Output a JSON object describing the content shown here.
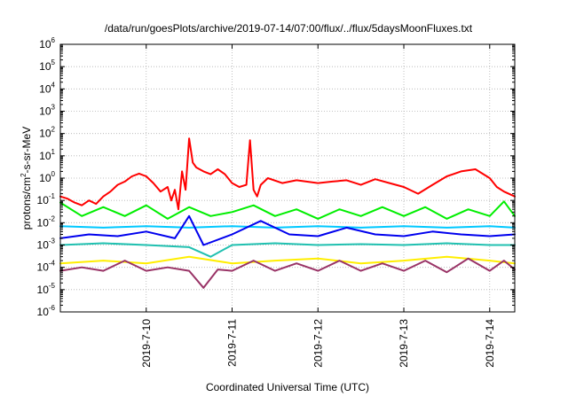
{
  "chart_data": {
    "type": "line",
    "title": "/data/run/goesPlots/archive/2019-07-14/07:00/flux/../flux/5daysMoonFluxes.txt",
    "xlabel": "Coordinated Universal Time (UTC)",
    "ylabel": {
      "base": "protons/cm",
      "sup": "2",
      "rest": "-s-sr-MeV"
    },
    "y_scale": "log",
    "ylim": [
      1e-06,
      1000000.0
    ],
    "y_ticks": [
      {
        "base": "10",
        "exp": "-6"
      },
      {
        "base": "10",
        "exp": "-5"
      },
      {
        "base": "10",
        "exp": "-4"
      },
      {
        "base": "10",
        "exp": "-3"
      },
      {
        "base": "10",
        "exp": "-2"
      },
      {
        "base": "10",
        "exp": "-1"
      },
      {
        "base": "10",
        "exp": "0"
      },
      {
        "base": "10",
        "exp": "1"
      },
      {
        "base": "10",
        "exp": "2"
      },
      {
        "base": "10",
        "exp": "3"
      },
      {
        "base": "10",
        "exp": "4"
      },
      {
        "base": "10",
        "exp": "5"
      },
      {
        "base": "10",
        "exp": "6"
      }
    ],
    "xlim": [
      "2019-07-09T00:00",
      "2019-07-14T07:00"
    ],
    "x_ticks": [
      "2019-7-10",
      "2019-7-11",
      "2019-7-12",
      "2019-7-13",
      "2019-7-14"
    ],
    "grid": true,
    "series": [
      {
        "color": "#ff0000",
        "points": [
          [
            "2019-07-09T00:00",
            0.15
          ],
          [
            "2019-07-09T02:00",
            0.12
          ],
          [
            "2019-07-09T04:00",
            0.08
          ],
          [
            "2019-07-09T06:00",
            0.06
          ],
          [
            "2019-07-09T08:00",
            0.1
          ],
          [
            "2019-07-09T10:00",
            0.07
          ],
          [
            "2019-07-09T12:00",
            0.15
          ],
          [
            "2019-07-09T14:00",
            0.25
          ],
          [
            "2019-07-09T16:00",
            0.5
          ],
          [
            "2019-07-09T18:00",
            0.7
          ],
          [
            "2019-07-09T20:00",
            1.2
          ],
          [
            "2019-07-09T22:00",
            1.6
          ],
          [
            "2019-07-10T00:00",
            1.2
          ],
          [
            "2019-07-10T02:00",
            0.6
          ],
          [
            "2019-07-10T04:00",
            0.25
          ],
          [
            "2019-07-10T06:00",
            0.4
          ],
          [
            "2019-07-10T07:00",
            0.1
          ],
          [
            "2019-07-10T08:00",
            0.3
          ],
          [
            "2019-07-10T09:00",
            0.04
          ],
          [
            "2019-07-10T10:00",
            2.0
          ],
          [
            "2019-07-10T11:00",
            0.3
          ],
          [
            "2019-07-10T12:00",
            60
          ],
          [
            "2019-07-10T13:00",
            5
          ],
          [
            "2019-07-10T14:00",
            3
          ],
          [
            "2019-07-10T16:00",
            2
          ],
          [
            "2019-07-10T18:00",
            1.5
          ],
          [
            "2019-07-10T20:00",
            2.5
          ],
          [
            "2019-07-10T22:00",
            1.5
          ],
          [
            "2019-07-11T00:00",
            0.6
          ],
          [
            "2019-07-11T02:00",
            0.4
          ],
          [
            "2019-07-11T04:00",
            0.5
          ],
          [
            "2019-07-11T05:00",
            50
          ],
          [
            "2019-07-11T06:00",
            0.3
          ],
          [
            "2019-07-11T07:00",
            0.15
          ],
          [
            "2019-07-11T08:00",
            0.5
          ],
          [
            "2019-07-11T10:00",
            1.0
          ],
          [
            "2019-07-11T14:00",
            0.6
          ],
          [
            "2019-07-11T18:00",
            0.8
          ],
          [
            "2019-07-12T00:00",
            0.6
          ],
          [
            "2019-07-12T04:00",
            0.7
          ],
          [
            "2019-07-12T08:00",
            0.8
          ],
          [
            "2019-07-12T12:00",
            0.5
          ],
          [
            "2019-07-12T16:00",
            0.9
          ],
          [
            "2019-07-12T20:00",
            0.6
          ],
          [
            "2019-07-13T00:00",
            0.4
          ],
          [
            "2019-07-13T04:00",
            0.2
          ],
          [
            "2019-07-13T08:00",
            0.5
          ],
          [
            "2019-07-13T12:00",
            1.2
          ],
          [
            "2019-07-13T16:00",
            2.0
          ],
          [
            "2019-07-13T20:00",
            2.5
          ],
          [
            "2019-07-14T00:00",
            1.0
          ],
          [
            "2019-07-14T02:00",
            0.4
          ],
          [
            "2019-07-14T04:00",
            0.25
          ],
          [
            "2019-07-14T07:00",
            0.15
          ]
        ]
      },
      {
        "color": "#00ee00",
        "points": [
          [
            "2019-07-09T00:00",
            0.08
          ],
          [
            "2019-07-09T06:00",
            0.02
          ],
          [
            "2019-07-09T12:00",
            0.05
          ],
          [
            "2019-07-09T18:00",
            0.02
          ],
          [
            "2019-07-10T00:00",
            0.06
          ],
          [
            "2019-07-10T06:00",
            0.015
          ],
          [
            "2019-07-10T12:00",
            0.05
          ],
          [
            "2019-07-10T18:00",
            0.02
          ],
          [
            "2019-07-11T00:00",
            0.03
          ],
          [
            "2019-07-11T06:00",
            0.06
          ],
          [
            "2019-07-11T12:00",
            0.02
          ],
          [
            "2019-07-11T18:00",
            0.04
          ],
          [
            "2019-07-12T00:00",
            0.015
          ],
          [
            "2019-07-12T06:00",
            0.04
          ],
          [
            "2019-07-12T12:00",
            0.02
          ],
          [
            "2019-07-12T18:00",
            0.05
          ],
          [
            "2019-07-13T00:00",
            0.02
          ],
          [
            "2019-07-13T06:00",
            0.05
          ],
          [
            "2019-07-13T12:00",
            0.015
          ],
          [
            "2019-07-13T18:00",
            0.04
          ],
          [
            "2019-07-14T00:00",
            0.02
          ],
          [
            "2019-07-14T04:00",
            0.09
          ],
          [
            "2019-07-14T07:00",
            0.02
          ]
        ]
      },
      {
        "color": "#00c8ff",
        "points": [
          [
            "2019-07-09T00:00",
            0.007
          ],
          [
            "2019-07-09T12:00",
            0.006
          ],
          [
            "2019-07-10T00:00",
            0.007
          ],
          [
            "2019-07-10T12:00",
            0.006
          ],
          [
            "2019-07-11T00:00",
            0.007
          ],
          [
            "2019-07-11T12:00",
            0.006
          ],
          [
            "2019-07-12T00:00",
            0.007
          ],
          [
            "2019-07-12T12:00",
            0.006
          ],
          [
            "2019-07-13T00:00",
            0.007
          ],
          [
            "2019-07-13T12:00",
            0.006
          ],
          [
            "2019-07-14T00:00",
            0.007
          ],
          [
            "2019-07-14T07:00",
            0.006
          ]
        ]
      },
      {
        "color": "#0000ee",
        "points": [
          [
            "2019-07-09T00:00",
            0.002
          ],
          [
            "2019-07-09T08:00",
            0.003
          ],
          [
            "2019-07-09T16:00",
            0.0025
          ],
          [
            "2019-07-10T00:00",
            0.004
          ],
          [
            "2019-07-10T08:00",
            0.002
          ],
          [
            "2019-07-10T12:00",
            0.02
          ],
          [
            "2019-07-10T16:00",
            0.001
          ],
          [
            "2019-07-11T00:00",
            0.003
          ],
          [
            "2019-07-11T08:00",
            0.012
          ],
          [
            "2019-07-11T16:00",
            0.003
          ],
          [
            "2019-07-12T00:00",
            0.0025
          ],
          [
            "2019-07-12T08:00",
            0.006
          ],
          [
            "2019-07-12T16:00",
            0.003
          ],
          [
            "2019-07-13T00:00",
            0.0025
          ],
          [
            "2019-07-13T08:00",
            0.004
          ],
          [
            "2019-07-13T16:00",
            0.003
          ],
          [
            "2019-07-14T00:00",
            0.0025
          ],
          [
            "2019-07-14T07:00",
            0.003
          ]
        ]
      },
      {
        "color": "#20c0b0",
        "points": [
          [
            "2019-07-09T00:00",
            0.001
          ],
          [
            "2019-07-09T12:00",
            0.0012
          ],
          [
            "2019-07-10T00:00",
            0.001
          ],
          [
            "2019-07-10T12:00",
            0.0008
          ],
          [
            "2019-07-10T18:00",
            0.0003
          ],
          [
            "2019-07-11T00:00",
            0.001
          ],
          [
            "2019-07-11T12:00",
            0.0012
          ],
          [
            "2019-07-12T00:00",
            0.001
          ],
          [
            "2019-07-12T12:00",
            0.0011
          ],
          [
            "2019-07-13T00:00",
            0.001
          ],
          [
            "2019-07-13T12:00",
            0.0012
          ],
          [
            "2019-07-14T00:00",
            0.001
          ],
          [
            "2019-07-14T07:00",
            0.001
          ]
        ]
      },
      {
        "color": "#ffee00",
        "points": [
          [
            "2019-07-09T00:00",
            0.00015
          ],
          [
            "2019-07-09T12:00",
            0.0002
          ],
          [
            "2019-07-10T00:00",
            0.00015
          ],
          [
            "2019-07-10T12:00",
            0.0003
          ],
          [
            "2019-07-11T00:00",
            0.00015
          ],
          [
            "2019-07-11T12:00",
            0.0002
          ],
          [
            "2019-07-12T00:00",
            0.00025
          ],
          [
            "2019-07-12T12:00",
            0.00015
          ],
          [
            "2019-07-13T00:00",
            0.0002
          ],
          [
            "2019-07-13T12:00",
            0.0003
          ],
          [
            "2019-07-14T00:00",
            0.0002
          ],
          [
            "2019-07-14T07:00",
            0.00015
          ]
        ]
      },
      {
        "color": "#993366",
        "points": [
          [
            "2019-07-09T00:00",
            7e-05
          ],
          [
            "2019-07-09T06:00",
            0.0001
          ],
          [
            "2019-07-09T12:00",
            7e-05
          ],
          [
            "2019-07-09T18:00",
            0.0002
          ],
          [
            "2019-07-10T00:00",
            7e-05
          ],
          [
            "2019-07-10T06:00",
            0.0001
          ],
          [
            "2019-07-10T12:00",
            7e-05
          ],
          [
            "2019-07-10T16:00",
            1.2e-05
          ],
          [
            "2019-07-10T20:00",
            8e-05
          ],
          [
            "2019-07-11T00:00",
            7e-05
          ],
          [
            "2019-07-11T06:00",
            0.0002
          ],
          [
            "2019-07-11T12:00",
            7e-05
          ],
          [
            "2019-07-11T18:00",
            0.00015
          ],
          [
            "2019-07-12T00:00",
            7e-05
          ],
          [
            "2019-07-12T06:00",
            0.0002
          ],
          [
            "2019-07-12T12:00",
            7e-05
          ],
          [
            "2019-07-12T18:00",
            0.00015
          ],
          [
            "2019-07-13T00:00",
            7e-05
          ],
          [
            "2019-07-13T06:00",
            0.0002
          ],
          [
            "2019-07-13T12:00",
            6e-05
          ],
          [
            "2019-07-13T18:00",
            0.00025
          ],
          [
            "2019-07-14T00:00",
            7e-05
          ],
          [
            "2019-07-14T04:00",
            0.0002
          ],
          [
            "2019-07-14T07:00",
            8e-05
          ]
        ]
      }
    ]
  }
}
